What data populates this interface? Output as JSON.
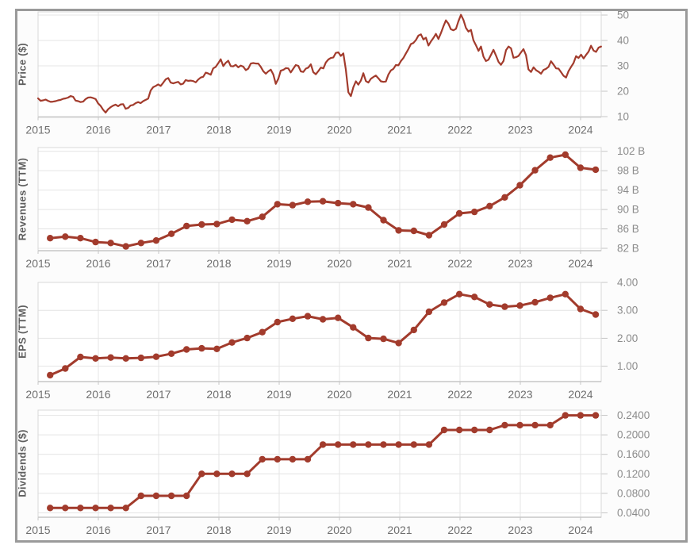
{
  "colors": {
    "series": "#a23b2c",
    "grid": "#e4e4e4",
    "axis_line": "#c6c6c6",
    "panel_border": "#d9d9d9",
    "tick_label": "#8b8b8b",
    "year_label": "#6f6f6f",
    "panel_title": "#5f5f5f",
    "frame_border": "#9a9a9a"
  },
  "x_axis_years": [
    "2015",
    "2016",
    "2017",
    "2018",
    "2019",
    "2020",
    "2021",
    "2022",
    "2023",
    "2024"
  ],
  "chart_data": [
    {
      "type": "line",
      "ylabel": "Price ($)",
      "markers": false,
      "x_range": [
        2015.0,
        2024.34
      ],
      "ylim": [
        10,
        50
      ],
      "gridline_values": [
        10,
        20,
        30,
        40,
        50
      ],
      "y_tick_labels": [
        "50",
        "40",
        "30",
        "20",
        "10"
      ],
      "values": [
        17.2,
        16.2,
        16.4,
        16.7,
        16.2,
        15.8,
        15.9,
        16.1,
        16.4,
        16.6,
        17.0,
        17.2,
        17.5,
        18.1,
        17.8,
        16.3,
        16.1,
        15.7,
        15.9,
        16.9,
        17.5,
        17.6,
        17.3,
        16.9,
        15.2,
        14.2,
        12.7,
        11.6,
        12.9,
        13.7,
        14.3,
        14.7,
        14.1,
        14.8,
        14.9,
        13.1,
        13.4,
        14.4,
        14.6,
        15.3,
        15.7,
        15.3,
        16.1,
        16.6,
        17.1,
        20.3,
        21.6,
        22.1,
        22.7,
        22.1,
        23.3,
        24.7,
        25.2,
        23.4,
        23.1,
        23.4,
        23.7,
        22.7,
        23.0,
        24.4,
        24.1,
        24.2,
        24.0,
        23.5,
        24.6,
        25.4,
        25.7,
        27.3,
        27.0,
        26.5,
        29.0,
        29.6,
        31.0,
        32.6,
        29.9,
        31.2,
        32.0,
        29.9,
        29.8,
        30.4,
        29.4,
        30.1,
        29.7,
        28.3,
        28.9,
        30.9,
        31.1,
        30.9,
        30.9,
        29.6,
        27.9,
        26.9,
        27.8,
        28.5,
        26.6,
        22.9,
        24.9,
        28.1,
        28.4,
        29.1,
        29.0,
        27.4,
        28.9,
        30.3,
        30.0,
        27.8,
        27.6,
        28.9,
        29.3,
        30.6,
        27.5,
        26.7,
        27.9,
        29.3,
        29.0,
        31.3,
        32.5,
        33.1,
        33.3,
        35.1,
        35.3,
        33.9,
        34.9,
        28.6,
        19.6,
        18.1,
        21.6,
        23.9,
        22.6,
        24.2,
        27.1,
        24.0,
        23.4,
        24.9,
        25.6,
        26.2,
        25.1,
        23.9,
        23.7,
        23.8,
        26.6,
        28.2,
        28.8,
        30.3,
        30.2,
        31.9,
        33.1,
        34.9,
        36.6,
        38.6,
        39.0,
        40.2,
        41.9,
        42.4,
        40.4,
        41.1,
        38.0,
        39.6,
        41.0,
        42.6,
        40.6,
        42.9,
        45.6,
        47.9,
        46.6,
        44.4,
        44.0,
        44.6,
        47.6,
        50.1,
        48.1,
        44.9,
        43.5,
        44.2,
        40.1,
        38.1,
        35.9,
        37.6,
        33.6,
        31.9,
        32.4,
        34.3,
        36.3,
        34.1,
        31.6,
        30.4,
        31.9,
        36.2,
        37.6,
        36.9,
        33.2,
        33.4,
        33.9,
        35.3,
        36.6,
        34.2,
        28.6,
        27.6,
        29.4,
        28.3,
        27.7,
        26.9,
        28.4,
        28.8,
        29.6,
        31.8,
        30.5,
        29.0,
        28.9,
        27.5,
        26.1,
        25.4,
        27.9,
        29.6,
        31.1,
        33.8,
        33.1,
        34.4,
        32.9,
        34.3,
        35.6,
        37.9,
        36.0,
        35.5,
        37.2,
        37.6
      ]
    },
    {
      "type": "line",
      "ylabel": "Revenues (TTM)",
      "markers": true,
      "x_start": 2015.2,
      "x_step": 0.2514,
      "ylim": [
        82,
        102
      ],
      "unit": "B",
      "gridline_values": [
        82,
        86,
        90,
        94,
        98,
        102
      ],
      "y_tick_labels": [
        "102 B",
        "98 B",
        "94 B",
        "90 B",
        "86 B",
        "82 B"
      ],
      "values": [
        84.1,
        84.4,
        84.1,
        83.3,
        83.1,
        82.4,
        83.1,
        83.6,
        85.0,
        86.6,
        86.9,
        87.0,
        87.9,
        87.6,
        88.5,
        91.1,
        90.9,
        91.6,
        91.7,
        91.3,
        91.1,
        90.4,
        87.8,
        85.7,
        85.6,
        84.7,
        86.9,
        89.2,
        89.5,
        90.7,
        92.5,
        95.0,
        98.1,
        100.7,
        101.3,
        98.6,
        98.2
      ]
    },
    {
      "type": "line",
      "ylabel": "EPS (TTM)",
      "markers": true,
      "x_start": 2015.2,
      "x_step": 0.2514,
      "ylim": [
        1.0,
        4.0
      ],
      "gridline_values": [
        1,
        2,
        3,
        4
      ],
      "y_tick_labels": [
        "4.00",
        "3.00",
        "2.00",
        "1.00"
      ],
      "values": [
        0.68,
        0.92,
        1.33,
        1.28,
        1.31,
        1.28,
        1.3,
        1.34,
        1.45,
        1.6,
        1.64,
        1.62,
        1.85,
        2.01,
        2.22,
        2.58,
        2.7,
        2.79,
        2.68,
        2.73,
        2.39,
        2.01,
        1.98,
        1.83,
        2.3,
        2.95,
        3.28,
        3.58,
        3.48,
        3.21,
        3.13,
        3.17,
        3.29,
        3.45,
        3.58,
        3.05,
        2.85
      ]
    },
    {
      "type": "line",
      "ylabel": "Dividends ($)",
      "markers": true,
      "x_start": 2015.2,
      "x_step": 0.2514,
      "ylim": [
        0.04,
        0.24
      ],
      "gridline_values": [
        0.04,
        0.08,
        0.12,
        0.16,
        0.2,
        0.24
      ],
      "y_tick_labels": [
        "0.2400",
        "0.2000",
        "0.1600",
        "0.1200",
        "0.0800",
        "0.0400"
      ],
      "values": [
        0.05,
        0.05,
        0.05,
        0.05,
        0.05,
        0.05,
        0.075,
        0.075,
        0.075,
        0.075,
        0.12,
        0.12,
        0.12,
        0.12,
        0.15,
        0.15,
        0.15,
        0.15,
        0.18,
        0.18,
        0.18,
        0.18,
        0.18,
        0.18,
        0.18,
        0.18,
        0.21,
        0.21,
        0.21,
        0.21,
        0.22,
        0.22,
        0.22,
        0.22,
        0.24,
        0.24,
        0.24
      ]
    }
  ]
}
